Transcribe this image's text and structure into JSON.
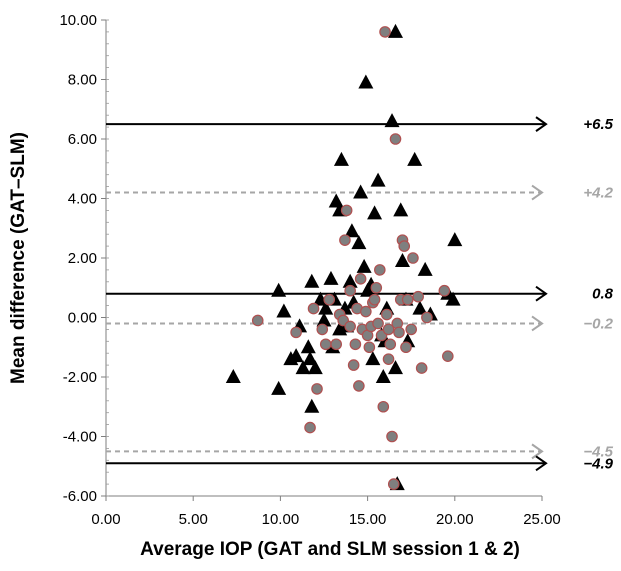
{
  "chart_data": {
    "type": "scatter",
    "title": "",
    "xlabel": "Average IOP (GAT and SLM session 1 & 2)",
    "ylabel": "Mean difference (GAT–SLM)",
    "xlim": [
      0,
      25
    ],
    "ylim": [
      -6,
      10
    ],
    "xticks": [
      "0.00",
      "5.00",
      "10.00",
      "15.00",
      "20.00",
      "25.00"
    ],
    "yticks": [
      "-6.00",
      "-4.00",
      "-2.00",
      "0.00",
      "2.00",
      "4.00",
      "6.00",
      "8.00",
      "10.00"
    ],
    "grid": false,
    "legend": "none",
    "reference_lines": [
      {
        "y": 6.5,
        "label": "+6.5",
        "style": "solid",
        "color": "#000000"
      },
      {
        "y": 4.2,
        "label": "+4.2",
        "style": "dashed",
        "color": "#a6a6a6"
      },
      {
        "y": 0.8,
        "label": "0.8",
        "style": "solid",
        "color": "#000000"
      },
      {
        "y": -0.2,
        "label": "−0.2",
        "style": "dashed",
        "color": "#a6a6a6"
      },
      {
        "y": -4.5,
        "label": "−4.5",
        "style": "dashed",
        "color": "#a6a6a6"
      },
      {
        "y": -4.9,
        "label": "−4.9",
        "style": "solid",
        "color": "#000000"
      }
    ],
    "series": [
      {
        "marker": "triangle",
        "color": "#000000",
        "points": [
          [
            7.3,
            -2.0
          ],
          [
            9.9,
            0.9
          ],
          [
            9.9,
            -2.4
          ],
          [
            10.2,
            0.2
          ],
          [
            10.6,
            -1.4
          ],
          [
            10.9,
            -1.3
          ],
          [
            11.1,
            -0.3
          ],
          [
            11.3,
            -1.7
          ],
          [
            11.6,
            -1.0
          ],
          [
            11.8,
            1.2
          ],
          [
            11.8,
            -3.0
          ],
          [
            12.0,
            -1.7
          ],
          [
            12.3,
            0.6
          ],
          [
            12.5,
            -0.1
          ],
          [
            12.6,
            0.3
          ],
          [
            12.9,
            1.3
          ],
          [
            13.0,
            -1.0
          ],
          [
            13.1,
            0.6
          ],
          [
            13.2,
            3.9
          ],
          [
            13.4,
            3.6
          ],
          [
            13.4,
            -0.4
          ],
          [
            13.5,
            5.3
          ],
          [
            13.7,
            0.3
          ],
          [
            13.8,
            -0.3
          ],
          [
            14.0,
            1.2
          ],
          [
            14.2,
            0.5
          ],
          [
            14.5,
            2.5
          ],
          [
            14.6,
            4.2
          ],
          [
            14.8,
            1.7
          ],
          [
            15.0,
            0.9
          ],
          [
            15.2,
            1.1
          ],
          [
            15.4,
            3.5
          ],
          [
            15.6,
            4.6
          ],
          [
            15.8,
            -0.6
          ],
          [
            15.9,
            -2.0
          ],
          [
            16.0,
            -0.8
          ],
          [
            16.1,
            0.3
          ],
          [
            16.4,
            6.6
          ],
          [
            16.6,
            9.6
          ],
          [
            16.7,
            -5.6
          ],
          [
            16.9,
            3.6
          ],
          [
            17.0,
            1.9
          ],
          [
            17.3,
            -0.8
          ],
          [
            17.7,
            5.3
          ],
          [
            18.0,
            0.3
          ],
          [
            18.3,
            1.6
          ],
          [
            18.6,
            0.1
          ],
          [
            19.6,
            0.8
          ],
          [
            19.9,
            0.6
          ],
          [
            20.0,
            2.6
          ],
          [
            14.9,
            7.9
          ],
          [
            14.1,
            2.9
          ],
          [
            15.3,
            -1.4
          ],
          [
            16.6,
            -1.7
          ],
          [
            17.2,
            0.6
          ],
          [
            11.7,
            -1.4
          ]
        ]
      },
      {
        "marker": "circle",
        "color": "#7f7f7f",
        "points": [
          [
            8.7,
            -0.1
          ],
          [
            10.9,
            -0.5
          ],
          [
            11.7,
            -3.7
          ],
          [
            11.9,
            0.3
          ],
          [
            12.1,
            -2.4
          ],
          [
            12.4,
            -0.4
          ],
          [
            12.6,
            -0.9
          ],
          [
            12.8,
            0.6
          ],
          [
            13.2,
            -0.9
          ],
          [
            13.4,
            0.1
          ],
          [
            13.6,
            -0.1
          ],
          [
            13.7,
            2.6
          ],
          [
            13.8,
            3.6
          ],
          [
            14.0,
            0.9
          ],
          [
            14.2,
            -1.6
          ],
          [
            14.3,
            -0.9
          ],
          [
            14.4,
            0.3
          ],
          [
            14.5,
            -2.3
          ],
          [
            14.6,
            1.3
          ],
          [
            14.7,
            -0.4
          ],
          [
            14.9,
            0.2
          ],
          [
            15.0,
            -0.6
          ],
          [
            15.1,
            -1.0
          ],
          [
            15.2,
            -0.3
          ],
          [
            15.3,
            0.5
          ],
          [
            15.4,
            0.6
          ],
          [
            15.6,
            -0.2
          ],
          [
            15.7,
            1.6
          ],
          [
            15.8,
            -0.6
          ],
          [
            15.9,
            -3.0
          ],
          [
            16.0,
            9.6
          ],
          [
            16.1,
            0.1
          ],
          [
            16.2,
            -0.4
          ],
          [
            16.3,
            -0.9
          ],
          [
            16.4,
            -4.0
          ],
          [
            16.5,
            -5.6
          ],
          [
            16.6,
            6.0
          ],
          [
            16.7,
            -0.2
          ],
          [
            16.8,
            -0.5
          ],
          [
            16.9,
            0.6
          ],
          [
            17.0,
            2.6
          ],
          [
            17.1,
            2.4
          ],
          [
            17.2,
            -1.0
          ],
          [
            17.3,
            0.6
          ],
          [
            17.5,
            -0.4
          ],
          [
            17.6,
            2.0
          ],
          [
            17.9,
            0.7
          ],
          [
            18.1,
            -1.7
          ],
          [
            18.4,
            0.0
          ],
          [
            19.4,
            0.9
          ],
          [
            19.6,
            -1.3
          ],
          [
            14.0,
            -0.3
          ],
          [
            15.5,
            1.0
          ],
          [
            16.2,
            -1.4
          ]
        ]
      }
    ]
  }
}
